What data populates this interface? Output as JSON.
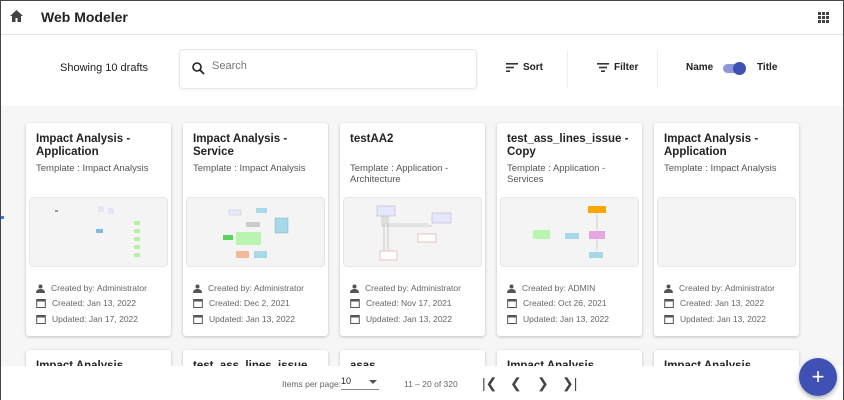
{
  "header": {
    "title": "Web Modeler",
    "home_icon": "home-icon",
    "apps_icon": "apps-grid-icon"
  },
  "toolbar": {
    "showing": "Showing 10 drafts",
    "search_placeholder": "Search",
    "sort_label": "Sort",
    "filter_label": "Filter",
    "toggle_left": "Name",
    "toggle_right": "Title",
    "toggle_on": true,
    "accent": "#3f51b5"
  },
  "cards": [
    {
      "title": "Impact Analysis - Application",
      "template": "Template : Impact Analysis",
      "created_by": "Created by: Administrator",
      "created": "Created: Jan 13, 2022",
      "updated": "Updated: Jan 17, 2022"
    },
    {
      "title": "Impact Analysis - Service",
      "template": "Template : Impact Analysis",
      "created_by": "Created by: Administrator",
      "created": "Created: Dec 2, 2021",
      "updated": "Updated: Jan 13, 2022"
    },
    {
      "title": "testAA2",
      "template": "Template : Application - Architecture",
      "created_by": "Created by: Administrator",
      "created": "Created: Nov 17, 2021",
      "updated": "Updated: Jan 13, 2022"
    },
    {
      "title": "test_ass_lines_issue - Copy",
      "template": "Template : Application - Services",
      "created_by": "Created by: ADMIN",
      "created": "Created: Oct 26, 2021",
      "updated": "Updated: Jan 13, 2022"
    },
    {
      "title": "Impact Analysis - Application",
      "template": "Template : Impact Analysis",
      "created_by": "Created by: Administrator",
      "created": "Created: Jan 13, 2022",
      "updated": "Updated: Jan 13, 2022"
    }
  ],
  "next_row_titles": [
    "Impact Analysis",
    "test_ass_lines_issue",
    "asas",
    "Impact Analysis",
    "Impact Analysis"
  ],
  "pagination": {
    "items_per_page_label": "Items per page:",
    "items_per_page": "10",
    "range": "11 – 20 of 320",
    "first": "|❮",
    "prev": "❮",
    "next": "❯",
    "last": "❯|"
  },
  "fab": {
    "label": "+"
  }
}
